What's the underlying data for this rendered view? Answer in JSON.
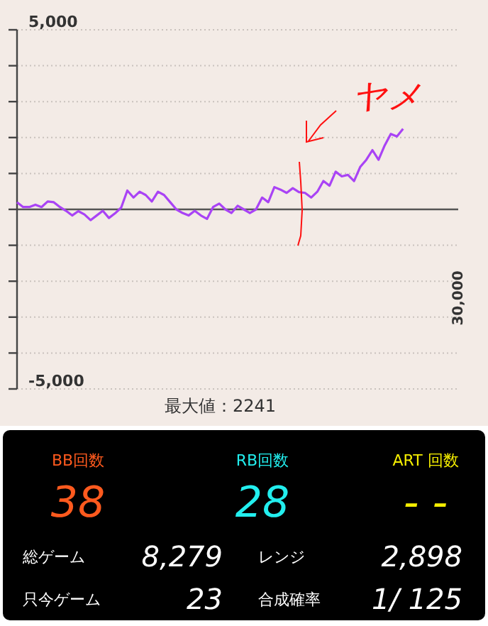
{
  "chart_data": [
    {
      "type": "line",
      "categories": [
        null,
        null,
        null,
        null,
        null,
        null,
        null,
        null,
        null,
        null,
        null,
        null,
        null,
        null,
        null,
        null,
        null,
        null,
        null,
        null,
        null,
        null,
        null,
        null,
        null,
        null,
        null,
        null,
        null,
        null,
        null,
        null,
        null,
        null,
        null,
        null,
        null,
        null,
        null,
        null,
        null,
        null,
        null,
        null,
        null,
        null,
        null,
        null,
        null,
        null,
        null,
        null,
        null,
        null,
        null,
        null,
        null,
        null,
        null,
        null,
        null,
        null,
        null,
        null,
        null,
        null,
        null,
        null,
        null,
        null,
        null,
        null,
        null
      ],
      "series": [
        {
          "color": "#a943f5",
          "values": [
            200,
            65,
            65,
            130,
            65,
            220,
            200,
            65,
            -40,
            -170,
            -50,
            -140,
            -300,
            -170,
            -40,
            -240,
            -110,
            50,
            525,
            330,
            490,
            400,
            220,
            490,
            400,
            200,
            0,
            -100,
            -170,
            -40,
            -170,
            -265,
            65,
            160,
            0,
            -100,
            100,
            0,
            -100,
            0,
            330,
            200,
            620,
            550,
            460,
            590,
            480,
            460,
            330,
            490,
            790,
            660,
            1050,
            920,
            960,
            790,
            1180,
            1380,
            1650,
            1380,
            1780,
            2100,
            2030,
            2241,
            null,
            null,
            null,
            null,
            null,
            null,
            null,
            null,
            null
          ]
        }
      ],
      "ylim": [
        -5000,
        5000
      ],
      "yticks": [
        {
          "value": -5000,
          "label": "-5,000"
        },
        {
          "value": -4000,
          "label": null
        },
        {
          "value": -3000,
          "label": null
        },
        {
          "value": -2000,
          "label": null
        },
        {
          "value": -1000,
          "label": null
        },
        {
          "value": 0,
          "label": null
        },
        {
          "value": 1000,
          "label": null
        },
        {
          "value": 2000,
          "label": null
        },
        {
          "value": 3000,
          "label": null
        },
        {
          "value": 4000,
          "label": null
        },
        {
          "value": 5000,
          "label": "5,000"
        }
      ],
      "grid": "y",
      "marker": "none",
      "line_style": "solid",
      "annotations": [
        "最大値：2241",
        "30,000",
        "ヤメ"
      ]
    },
    {
      "type": "other",
      "annotations": [
        "BB回数",
        "38",
        "RB回数",
        "28",
        "ART 回数",
        "- -",
        "総ゲーム",
        "8,279",
        "レンジ",
        "2,898",
        "只今ゲーム",
        "23",
        "合成確率",
        "1/ 125"
      ],
      "colors": [
        "#ff5a1e",
        "#22eeee",
        "#f5ee00"
      ]
    }
  ]
}
